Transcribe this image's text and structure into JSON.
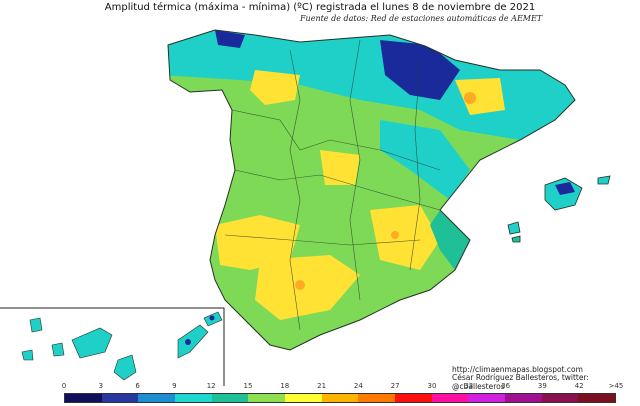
{
  "title": "Amplitud térmica (máxima - mínima) (ºC) registrada el lunes 8 de noviembre de 2021",
  "subtitle": "Fuente de datos: Red de estaciones automáticas de AEMET",
  "credits": {
    "url": "http://climaenmapas.blogspot.com",
    "author": "César Rodríguez Ballesteros, twitter: @cballesteros"
  },
  "legend": {
    "tick_labels": [
      "0",
      "3",
      "6",
      "9",
      "12",
      "15",
      "18",
      "21",
      "24",
      "27",
      "30",
      "33",
      "36",
      "39",
      "42",
      ">45"
    ],
    "colors": [
      "#10105a",
      "#2838a0",
      "#1c8fd0",
      "#22d6d0",
      "#1fbf98",
      "#8fe050",
      "#ffff33",
      "#ffb400",
      "#ff7a00",
      "#ff1010",
      "#ff10a0",
      "#d020e0",
      "#a01090",
      "#8a1050",
      "#7a1020"
    ]
  },
  "map_colors": {
    "ocean": "#ffffff",
    "base": "#7ed957",
    "north_teal": "#1fd0c8",
    "dark_blue": "#1a2a9a",
    "yellow": "#ffe233",
    "orange": "#ffaa22",
    "border": "#223322"
  }
}
